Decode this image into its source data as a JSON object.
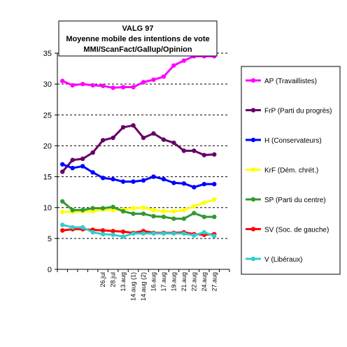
{
  "chart_data": {
    "type": "line",
    "title_lines": [
      "VALG 97",
      "Moyenne mobile des intentions de vote",
      "MMI/ScanFact/Gallup/Opinion"
    ],
    "xlabel": "",
    "ylabel": "",
    "ylim": [
      0,
      35
    ],
    "yticks": [
      0,
      5,
      10,
      15,
      20,
      25,
      30,
      35
    ],
    "grid": "horizontal-dashed",
    "legend_position": "right",
    "x_positions": 17,
    "x_tick_labels": [
      {
        "index": 4,
        "label": "26.jul"
      },
      {
        "index": 5,
        "label": "28.jul"
      },
      {
        "index": 6,
        "label": "13.aug"
      },
      {
        "index": 7,
        "label": "14.aug (1)"
      },
      {
        "index": 8,
        "label": "14.aug (2)"
      },
      {
        "index": 9,
        "label": "16.aug"
      },
      {
        "index": 10,
        "label": "17.aug"
      },
      {
        "index": 11,
        "label": "19.aug"
      },
      {
        "index": 12,
        "label": "21.aug"
      },
      {
        "index": 13,
        "label": "22.aug"
      },
      {
        "index": 14,
        "label": "24.aug"
      },
      {
        "index": 15,
        "label": "27.aug"
      }
    ],
    "series": [
      {
        "name": "AP (Travaillistes)",
        "color": "#ff00ff",
        "values": [
          30.5,
          29.8,
          30.0,
          29.8,
          29.7,
          29.4,
          29.5,
          29.5,
          30.3,
          30.7,
          31.2,
          33.0,
          33.8,
          34.5,
          34.5,
          34.5
        ]
      },
      {
        "name": "FrP (Parti du progrès)",
        "color": "#660066",
        "values": [
          15.8,
          17.7,
          17.9,
          18.9,
          20.9,
          21.3,
          23.0,
          23.3,
          21.3,
          22.0,
          21.0,
          20.5,
          19.2,
          19.2,
          18.5,
          18.6
        ]
      },
      {
        "name": "H (Conservateurs)",
        "color": "#0000ff",
        "values": [
          17.0,
          16.4,
          16.7,
          15.7,
          14.8,
          14.6,
          14.2,
          14.2,
          14.4,
          15.0,
          14.6,
          14.0,
          13.9,
          13.3,
          13.8,
          13.8
        ]
      },
      {
        "name": "KrF (Dém. chrét.)",
        "color": "#ffff00",
        "values": [
          9.3,
          9.3,
          9.4,
          9.4,
          9.7,
          9.6,
          9.7,
          9.9,
          10.0,
          9.6,
          9.4,
          9.4,
          9.6,
          10.2,
          10.8,
          11.3
        ]
      },
      {
        "name": "SP (Parti du centre)",
        "color": "#339933",
        "values": [
          11.0,
          9.6,
          9.6,
          9.9,
          9.9,
          10.1,
          9.4,
          9.0,
          9.0,
          8.6,
          8.5,
          8.2,
          8.2,
          9.1,
          8.5,
          8.5
        ]
      },
      {
        "name": "SV (Soc. de gauche)",
        "color": "#ff0000",
        "values": [
          6.3,
          6.5,
          6.5,
          6.4,
          6.3,
          6.2,
          6.1,
          5.9,
          6.2,
          5.9,
          5.9,
          5.9,
          6.0,
          5.7,
          5.6,
          5.7
        ]
      },
      {
        "name": "V (Libéraux)",
        "color": "#33cccc",
        "values": [
          7.2,
          6.8,
          6.8,
          6.0,
          5.7,
          5.6,
          5.3,
          5.8,
          5.8,
          5.8,
          5.8,
          5.8,
          5.8,
          5.5,
          6.0,
          5.4
        ]
      }
    ]
  }
}
